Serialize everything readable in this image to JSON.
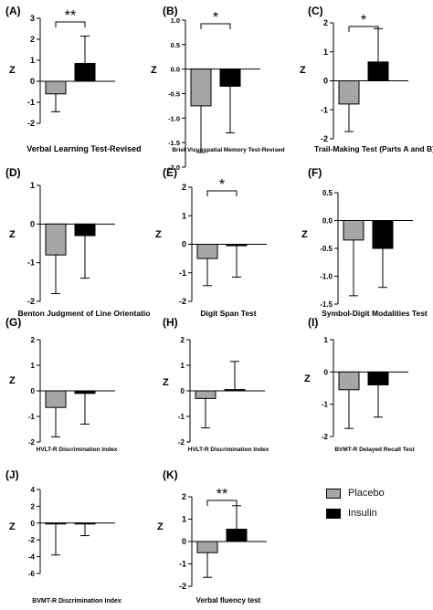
{
  "colors": {
    "placebo": "#a6a6a6",
    "insulin": "#000000",
    "axis": "#000000"
  },
  "legend": {
    "items": [
      {
        "label": "Placebo",
        "color": "#a6a6a6"
      },
      {
        "label": "Insulin",
        "color": "#000000"
      }
    ],
    "position": "right"
  },
  "chart_data": [
    {
      "type": "bar",
      "panel": "(A)",
      "ylabel": "Z",
      "xlabel": "Verbal Learning Test-Revised",
      "ylim": [
        -2,
        3
      ],
      "yticks": [
        -2,
        -1,
        0,
        1,
        2,
        3
      ],
      "ytick_labels": [
        "-2",
        "-1",
        "0",
        "1",
        "2",
        "3"
      ],
      "series": [
        {
          "name": "Placebo",
          "values": [
            -0.6
          ],
          "error": [
            0.85
          ]
        },
        {
          "name": "Insulin",
          "values": [
            0.85
          ],
          "error": [
            1.3
          ]
        }
      ],
      "significance": "**"
    },
    {
      "type": "bar",
      "panel": "(B)",
      "ylabel": "Z",
      "xlabel": "Brief Visuospatial Memory Test-Revised",
      "ylim": [
        -2.0,
        1.0
      ],
      "yticks": [
        -2.0,
        -1.5,
        -1.0,
        -0.5,
        0.0,
        0.5,
        1.0
      ],
      "ytick_labels": [
        "-2.0",
        "-1.5",
        "-1.0",
        "-0.5",
        "0.0",
        "0.5",
        "1.0"
      ],
      "series": [
        {
          "name": "Placebo",
          "values": [
            -0.75
          ],
          "error": [
            0.95
          ]
        },
        {
          "name": "Insulin",
          "values": [
            -0.35
          ],
          "error": [
            0.95
          ]
        }
      ],
      "significance": "*"
    },
    {
      "type": "bar",
      "panel": "(C)",
      "ylabel": "Z",
      "xlabel": "Trail-Making Test (Parts A and B)",
      "ylim": [
        -2,
        2
      ],
      "yticks": [
        -2,
        -1,
        0,
        1,
        2
      ],
      "ytick_labels": [
        "-2",
        "-1",
        "0",
        "1",
        "2"
      ],
      "series": [
        {
          "name": "Placebo",
          "values": [
            -0.8
          ],
          "error": [
            0.95
          ]
        },
        {
          "name": "Insulin",
          "values": [
            0.65
          ],
          "error": [
            1.15
          ]
        }
      ],
      "significance": "*"
    },
    {
      "type": "bar",
      "panel": "(D)",
      "ylabel": "Z",
      "xlabel": "Benton Judgment of Line Orientatio",
      "ylim": [
        -2,
        1
      ],
      "yticks": [
        -2,
        -1,
        0,
        1
      ],
      "ytick_labels": [
        "-2",
        "-1",
        "0",
        "1"
      ],
      "series": [
        {
          "name": "Placebo",
          "values": [
            -0.8
          ],
          "error": [
            1.0
          ]
        },
        {
          "name": "Insulin",
          "values": [
            -0.3
          ],
          "error": [
            1.1
          ]
        }
      ],
      "significance": ""
    },
    {
      "type": "bar",
      "panel": "(E)",
      "ylabel": "Z",
      "xlabel": "Digit Span Test",
      "ylim": [
        -2,
        2
      ],
      "yticks": [
        -2,
        -1,
        0,
        1,
        2
      ],
      "ytick_labels": [
        "-2",
        "-1",
        "0",
        "1",
        "2"
      ],
      "series": [
        {
          "name": "Placebo",
          "values": [
            -0.5
          ],
          "error": [
            0.95
          ]
        },
        {
          "name": "Insulin",
          "values": [
            -0.05
          ],
          "error": [
            1.1
          ]
        }
      ],
      "significance": "*"
    },
    {
      "type": "bar",
      "panel": "(F)",
      "ylabel": "Z",
      "xlabel": "Symbol-Digit Modalities Test",
      "ylim": [
        -1.5,
        0.5
      ],
      "yticks": [
        -1.5,
        -1.0,
        -0.5,
        0.0,
        0.5
      ],
      "ytick_labels": [
        "-1.5",
        "-1.0",
        "-0.5",
        "0.0",
        "0.5"
      ],
      "series": [
        {
          "name": "Placebo",
          "values": [
            -0.35
          ],
          "error": [
            1.0
          ]
        },
        {
          "name": "Insulin",
          "values": [
            -0.5
          ],
          "error": [
            0.7
          ]
        }
      ],
      "significance": ""
    },
    {
      "type": "bar",
      "panel": "(G)",
      "ylabel": "Z",
      "xlabel": "HVLT-R Discrimination Index",
      "ylim": [
        -2,
        2
      ],
      "yticks": [
        -2,
        -1,
        0,
        1,
        2
      ],
      "ytick_labels": [
        "-2",
        "-1",
        "0",
        "1",
        "2"
      ],
      "series": [
        {
          "name": "Placebo",
          "values": [
            -0.65
          ],
          "error": [
            1.15
          ]
        },
        {
          "name": "Insulin",
          "values": [
            -0.1
          ],
          "error": [
            1.2
          ]
        }
      ],
      "significance": ""
    },
    {
      "type": "bar",
      "panel": "(H)",
      "ylabel": "Z",
      "xlabel": "HVLT-R Discrimination Index",
      "ylim": [
        -2,
        2
      ],
      "yticks": [
        -2,
        -1,
        0,
        1,
        2
      ],
      "ytick_labels": [
        "-2",
        "-1",
        "0",
        "1",
        "2"
      ],
      "series": [
        {
          "name": "Placebo",
          "values": [
            -0.3
          ],
          "error": [
            1.15
          ]
        },
        {
          "name": "Insulin",
          "values": [
            0.05
          ],
          "error": [
            1.1
          ]
        }
      ],
      "significance": ""
    },
    {
      "type": "bar",
      "panel": "(I)",
      "ylabel": "Z",
      "xlabel": "BVMT-R Delayed Recall Test",
      "ylim": [
        -2,
        1
      ],
      "yticks": [
        -2,
        -1,
        0,
        1
      ],
      "ytick_labels": [
        "-2",
        "-1",
        "0",
        "1"
      ],
      "series": [
        {
          "name": "Placebo",
          "values": [
            -0.55
          ],
          "error": [
            1.2
          ]
        },
        {
          "name": "Insulin",
          "values": [
            -0.4
          ],
          "error": [
            1.0
          ]
        }
      ],
      "significance": ""
    },
    {
      "type": "bar",
      "panel": "(J)",
      "ylabel": "Z",
      "xlabel": "BVMT-R Discrimination Index",
      "ylim": [
        -6,
        4
      ],
      "yticks": [
        -6,
        -4,
        -2,
        0,
        2,
        4
      ],
      "ytick_labels": [
        "-6",
        "-4",
        "-2",
        "0",
        "2",
        "4"
      ],
      "series": [
        {
          "name": "Placebo",
          "values": [
            -0.1
          ],
          "error": [
            3.7
          ]
        },
        {
          "name": "Insulin",
          "values": [
            -0.1
          ],
          "error": [
            1.4
          ]
        }
      ],
      "significance": ""
    },
    {
      "type": "bar",
      "panel": "(K)",
      "ylabel": "Z",
      "xlabel": "Verbal fluency test",
      "ylim": [
        -2,
        2
      ],
      "yticks": [
        -2,
        -1,
        0,
        1,
        2
      ],
      "ytick_labels": [
        "-2",
        "-1",
        "0",
        "1",
        "2"
      ],
      "series": [
        {
          "name": "Placebo",
          "values": [
            -0.5
          ],
          "error": [
            1.1
          ]
        },
        {
          "name": "Insulin",
          "values": [
            0.55
          ],
          "error": [
            1.05
          ]
        }
      ],
      "significance": "**"
    }
  ]
}
